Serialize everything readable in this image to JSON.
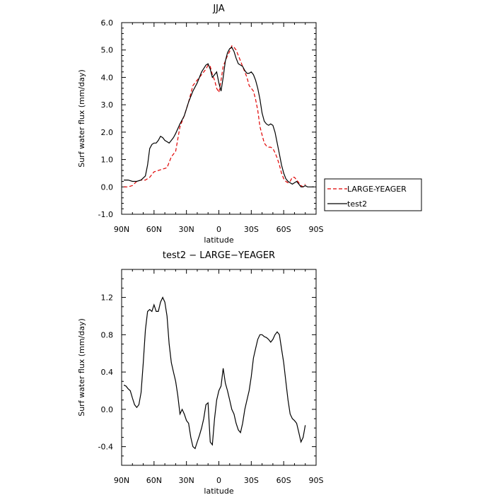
{
  "chart_data": [
    {
      "type": "line",
      "title": "JJA",
      "xlabel": "latitude",
      "ylabel": "Surf water flux (mm/day)",
      "xlim": [
        90,
        -90
      ],
      "ylim": [
        -1.0,
        6.0
      ],
      "xticks": [
        90,
        60,
        30,
        0,
        -30,
        -60,
        -90
      ],
      "xtick_labels": [
        "90N",
        "60N",
        "30N",
        "0",
        "30S",
        "60S",
        "90S"
      ],
      "yticks": [
        -1,
        0,
        1,
        2,
        3,
        4,
        5,
        6
      ],
      "ytick_labels": [
        "-1.0",
        "0.0",
        "1.0",
        "2.0",
        "3.0",
        "4.0",
        "5.0",
        "6.0"
      ],
      "legend_position": "right",
      "series": [
        {
          "name": "LARGE-YEAGER",
          "color": "#e00000",
          "style": "dashed",
          "x": [
            88,
            84,
            80,
            76,
            72,
            68,
            64,
            60,
            56,
            52,
            48,
            44,
            40,
            36,
            32,
            28,
            24,
            20,
            16,
            12,
            10,
            8,
            6,
            4,
            2,
            0,
            -2,
            -4,
            -6,
            -8,
            -10,
            -12,
            -14,
            -16,
            -18,
            -20,
            -22,
            -24,
            -26,
            -28,
            -30,
            -32,
            -34,
            -36,
            -38,
            -40,
            -42,
            -44,
            -46,
            -48,
            -50,
            -52,
            -54,
            -56,
            -58,
            -60,
            -62,
            -64,
            -66,
            -68,
            -70,
            -72,
            -74,
            -76,
            -78,
            -80
          ],
          "y": [
            0.0,
            0.0,
            0.05,
            0.2,
            0.25,
            0.25,
            0.35,
            0.55,
            0.6,
            0.65,
            0.7,
            1.1,
            1.3,
            2.2,
            2.6,
            3.1,
            3.7,
            3.9,
            4.1,
            4.3,
            4.45,
            4.4,
            4.1,
            3.9,
            3.6,
            3.45,
            3.9,
            4.4,
            4.6,
            4.8,
            4.95,
            5.15,
            5.1,
            5.0,
            4.8,
            4.6,
            4.4,
            4.2,
            4.0,
            3.7,
            3.6,
            3.5,
            3.2,
            2.8,
            2.2,
            1.9,
            1.6,
            1.5,
            1.45,
            1.45,
            1.4,
            1.25,
            1.05,
            0.8,
            0.5,
            0.3,
            0.2,
            0.15,
            0.2,
            0.35,
            0.35,
            0.25,
            0.15,
            0.05,
            0.0,
            0.1
          ]
        },
        {
          "name": "test2",
          "color": "#000000",
          "style": "solid",
          "x": [
            88,
            84,
            80,
            76,
            72,
            68,
            66,
            64,
            62,
            60,
            58,
            56,
            54,
            52,
            50,
            48,
            46,
            44,
            42,
            40,
            36,
            32,
            28,
            24,
            20,
            16,
            12,
            10,
            8,
            6,
            4,
            2,
            0,
            -2,
            -4,
            -6,
            -8,
            -10,
            -12,
            -14,
            -16,
            -18,
            -20,
            -22,
            -24,
            -26,
            -28,
            -30,
            -32,
            -34,
            -36,
            -38,
            -40,
            -42,
            -44,
            -46,
            -48,
            -50,
            -52,
            -54,
            -56,
            -58,
            -60,
            -62,
            -64,
            -66,
            -68,
            -70,
            -72,
            -74,
            -76,
            -78,
            -80,
            -82,
            -84,
            -86,
            -88
          ],
          "y": [
            0.25,
            0.25,
            0.2,
            0.2,
            0.25,
            0.4,
            0.8,
            1.4,
            1.55,
            1.6,
            1.6,
            1.7,
            1.85,
            1.8,
            1.7,
            1.65,
            1.6,
            1.7,
            1.8,
            1.95,
            2.3,
            2.6,
            3.1,
            3.5,
            3.8,
            4.2,
            4.45,
            4.5,
            4.3,
            4.0,
            4.1,
            4.2,
            3.8,
            3.5,
            4.0,
            4.6,
            4.9,
            5.05,
            5.1,
            4.95,
            4.7,
            4.5,
            4.45,
            4.4,
            4.25,
            4.15,
            4.15,
            4.2,
            4.1,
            3.9,
            3.6,
            3.2,
            2.7,
            2.4,
            2.3,
            2.25,
            2.3,
            2.25,
            2.0,
            1.6,
            1.2,
            0.8,
            0.5,
            0.3,
            0.2,
            0.15,
            0.1,
            0.15,
            0.2,
            0.1,
            0.0,
            0.0,
            0.05,
            0.0,
            0.0,
            0.0,
            0.0
          ]
        }
      ]
    },
    {
      "type": "line",
      "title": "test2 − LARGE−YEAGER",
      "xlabel": "latitude",
      "ylabel": "Surf water flux (mm/day)",
      "xlim": [
        90,
        -90
      ],
      "ylim": [
        -0.6,
        1.5
      ],
      "xticks": [
        90,
        60,
        30,
        0,
        -30,
        -60,
        -90
      ],
      "xtick_labels": [
        "90N",
        "60N",
        "30N",
        "0",
        "30S",
        "60S",
        "90S"
      ],
      "yticks": [
        -0.4,
        0.0,
        0.4,
        0.8,
        1.2
      ],
      "ytick_labels": [
        "-0.4",
        "0.0",
        "0.4",
        "0.8",
        "1.2"
      ],
      "series": [
        {
          "name": "",
          "color": "#000000",
          "style": "solid",
          "x": [
            88,
            86,
            84,
            82,
            80,
            78,
            76,
            74,
            72,
            70,
            68,
            66,
            64,
            62,
            60,
            58,
            56,
            54,
            52,
            50,
            48,
            46,
            44,
            42,
            40,
            38,
            36,
            34,
            32,
            30,
            28,
            26,
            24,
            22,
            20,
            18,
            16,
            14,
            12,
            10,
            8,
            6,
            4,
            2,
            0,
            -2,
            -4,
            -6,
            -8,
            -10,
            -12,
            -14,
            -16,
            -18,
            -20,
            -22,
            -24,
            -26,
            -28,
            -30,
            -32,
            -34,
            -36,
            -38,
            -40,
            -42,
            -44,
            -46,
            -48,
            -50,
            -52,
            -54,
            -56,
            -58,
            -60,
            -62,
            -64,
            -66,
            -68,
            -70,
            -72,
            -74,
            -76,
            -78,
            -80
          ],
          "y": [
            0.26,
            0.25,
            0.22,
            0.2,
            0.12,
            0.05,
            0.02,
            0.05,
            0.18,
            0.5,
            0.85,
            1.05,
            1.07,
            1.05,
            1.12,
            1.05,
            1.05,
            1.15,
            1.2,
            1.15,
            1.0,
            0.7,
            0.5,
            0.4,
            0.3,
            0.15,
            -0.05,
            0.0,
            -0.05,
            -0.12,
            -0.15,
            -0.3,
            -0.4,
            -0.42,
            -0.35,
            -0.28,
            -0.2,
            -0.1,
            0.05,
            0.07,
            -0.35,
            -0.38,
            -0.1,
            0.1,
            0.2,
            0.25,
            0.44,
            0.28,
            0.2,
            0.1,
            0.0,
            -0.05,
            -0.15,
            -0.22,
            -0.25,
            -0.15,
            0.0,
            0.1,
            0.2,
            0.35,
            0.55,
            0.65,
            0.75,
            0.8,
            0.8,
            0.78,
            0.77,
            0.75,
            0.72,
            0.75,
            0.8,
            0.83,
            0.8,
            0.65,
            0.5,
            0.3,
            0.1,
            -0.05,
            -0.1,
            -0.12,
            -0.15,
            -0.25,
            -0.35,
            -0.3,
            -0.17
          ]
        }
      ]
    }
  ]
}
